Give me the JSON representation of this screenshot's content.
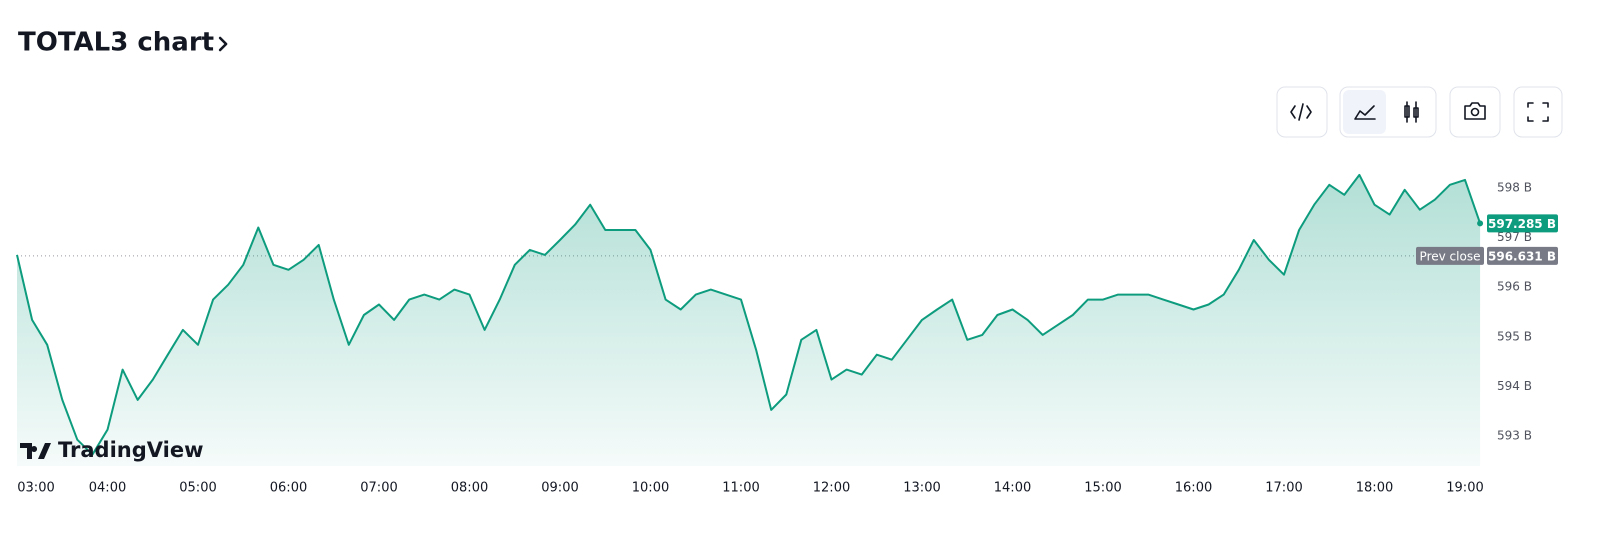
{
  "chart_data": {
    "type": "area",
    "title": "TOTAL3 chart",
    "watermark": "TradingView",
    "color": "#0e9c7e",
    "grid": false,
    "x": [
      "03:00",
      "03:10",
      "03:20",
      "03:30",
      "03:40",
      "03:50",
      "04:00",
      "04:10",
      "04:20",
      "04:30",
      "04:40",
      "04:50",
      "05:00",
      "05:10",
      "05:20",
      "05:30",
      "05:40",
      "05:50",
      "06:00",
      "06:10",
      "06:20",
      "06:30",
      "06:40",
      "06:50",
      "07:00",
      "07:10",
      "07:20",
      "07:30",
      "07:40",
      "07:50",
      "08:00",
      "08:10",
      "08:20",
      "08:30",
      "08:40",
      "08:50",
      "09:00",
      "09:10",
      "09:20",
      "09:30",
      "09:40",
      "09:50",
      "10:00",
      "10:10",
      "10:20",
      "10:30",
      "10:40",
      "10:50",
      "11:00",
      "11:10",
      "11:20",
      "11:30",
      "11:40",
      "11:50",
      "12:00",
      "12:10",
      "12:20",
      "12:30",
      "12:40",
      "12:50",
      "13:00",
      "13:10",
      "13:20",
      "13:30",
      "13:40",
      "13:50",
      "14:00",
      "14:10",
      "14:20",
      "14:30",
      "14:40",
      "14:50",
      "15:00",
      "15:10",
      "15:20",
      "15:30",
      "15:40",
      "15:50",
      "16:00",
      "16:10",
      "16:20",
      "16:30",
      "16:40",
      "16:50",
      "17:00",
      "17:10",
      "17:20",
      "17:30",
      "17:40",
      "17:50",
      "18:00",
      "18:10",
      "18:20",
      "18:30",
      "18:40",
      "18:50",
      "19:00",
      "19:10"
    ],
    "values": [
      596.65,
      595.34,
      594.84,
      593.73,
      592.93,
      592.63,
      593.13,
      594.34,
      593.73,
      594.14,
      594.64,
      595.14,
      594.84,
      595.75,
      596.05,
      596.45,
      597.2,
      596.45,
      596.35,
      596.55,
      596.85,
      595.75,
      594.84,
      595.44,
      595.65,
      595.34,
      595.75,
      595.85,
      595.75,
      595.95,
      595.85,
      595.14,
      595.75,
      596.45,
      596.75,
      596.65,
      596.95,
      597.26,
      597.66,
      597.15,
      597.15,
      597.15,
      596.75,
      595.75,
      595.55,
      595.85,
      595.95,
      595.85,
      595.75,
      594.74,
      593.53,
      593.84,
      594.94,
      595.14,
      594.14,
      594.34,
      594.24,
      594.64,
      594.54,
      594.94,
      595.34,
      595.55,
      595.75,
      594.94,
      595.04,
      595.44,
      595.55,
      595.34,
      595.04,
      595.24,
      595.44,
      595.75,
      595.75,
      595.85,
      595.85,
      595.85,
      595.75,
      595.65,
      595.55,
      595.65,
      595.85,
      596.35,
      596.95,
      596.55,
      596.25,
      597.15,
      597.66,
      598.06,
      597.86,
      598.26,
      597.66,
      597.46,
      597.96,
      597.56,
      597.76,
      598.06,
      598.16,
      597.285
    ],
    "xticks": [
      "03:00",
      "04:00",
      "05:00",
      "06:00",
      "07:00",
      "08:00",
      "09:00",
      "10:00",
      "11:00",
      "12:00",
      "13:00",
      "14:00",
      "15:00",
      "16:00",
      "17:00",
      "18:00",
      "19:00"
    ],
    "ylim": [
      592.4,
      598.6
    ],
    "yticks": [
      {
        "value": 593,
        "label": "593 B"
      },
      {
        "value": 594,
        "label": "594 B"
      },
      {
        "value": 595,
        "label": "595 B"
      },
      {
        "value": 596,
        "label": "596 B"
      },
      {
        "value": 597,
        "label": "597 B"
      },
      {
        "value": 598,
        "label": "598 B"
      }
    ],
    "last_price": {
      "value": 597.285,
      "label": "597.285 B"
    },
    "prev_close": {
      "name": "Prev close",
      "value": 596.631,
      "label": "596.631 B"
    }
  }
}
